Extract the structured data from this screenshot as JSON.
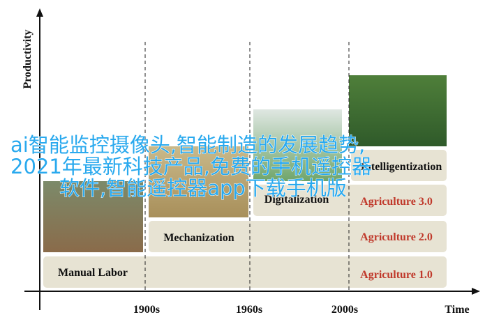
{
  "diagram": {
    "y_axis_label": "Productivity",
    "x_axis_label": "Time",
    "x_ticks": [
      "1900s",
      "1960s",
      "2000s"
    ],
    "stages": [
      {
        "label": "Manual Labor",
        "stage": "Agriculture 1.0"
      },
      {
        "label": "Mechanization",
        "stage": "Agriculture 2.0"
      },
      {
        "label": "Digitalization",
        "stage": "Agriculture 3.0"
      },
      {
        "label": "Intelligentization"
      }
    ]
  },
  "overlay": {
    "lines": [
      "ai智能监控摄像头,智能制造的发展趋势,",
      "2021年最新科技产品,免费的手机遥控器",
      "软件,智能遥控器app下载手机版"
    ]
  }
}
